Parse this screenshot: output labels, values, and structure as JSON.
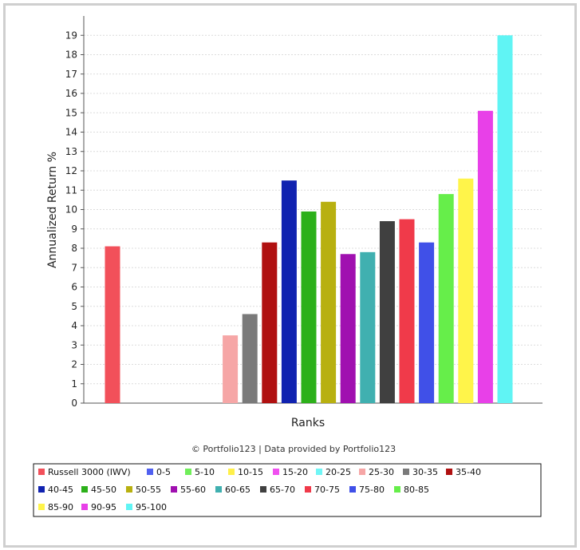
{
  "chart_data": {
    "type": "bar",
    "title": "",
    "xlabel": "Ranks",
    "ylabel": "Annualized Return %",
    "ylim": [
      0,
      20
    ],
    "yticks": [
      0,
      1,
      2,
      3,
      4,
      5,
      6,
      7,
      8,
      9,
      10,
      11,
      12,
      13,
      14,
      15,
      16,
      17,
      18,
      19
    ],
    "grid": true,
    "legend_position": "bottom",
    "credit": "© Portfolio123 | Data provided by Portfolio123",
    "series": [
      {
        "name": "Russell 3000 (IWV)",
        "value": 8.1,
        "color": "#f2505a"
      },
      {
        "name": "0-5",
        "value": null,
        "color": "#5060f0"
      },
      {
        "name": "5-10",
        "value": null,
        "color": "#70ee5a"
      },
      {
        "name": "10-15",
        "value": null,
        "color": "#fff04a"
      },
      {
        "name": "15-20",
        "value": null,
        "color": "#f050f0"
      },
      {
        "name": "20-25",
        "value": null,
        "color": "#70f6f6"
      },
      {
        "name": "25-30",
        "value": 3.5,
        "color": "#f6a6a6"
      },
      {
        "name": "30-35",
        "value": 4.6,
        "color": "#7a7a7a"
      },
      {
        "name": "35-40",
        "value": 8.3,
        "color": "#b01010"
      },
      {
        "name": "40-45",
        "value": 11.5,
        "color": "#1022b0"
      },
      {
        "name": "45-50",
        "value": 9.9,
        "color": "#2cb01a"
      },
      {
        "name": "50-55",
        "value": 10.4,
        "color": "#b8b010"
      },
      {
        "name": "55-60",
        "value": 7.7,
        "color": "#a010b0"
      },
      {
        "name": "60-65",
        "value": 7.8,
        "color": "#40b0b0"
      },
      {
        "name": "65-70",
        "value": 9.4,
        "color": "#404040"
      },
      {
        "name": "70-75",
        "value": 9.5,
        "color": "#f03a4a"
      },
      {
        "name": "75-80",
        "value": 8.3,
        "color": "#4050e8"
      },
      {
        "name": "80-85",
        "value": 10.8,
        "color": "#66ee4a"
      },
      {
        "name": "85-90",
        "value": 11.6,
        "color": "#fff44a"
      },
      {
        "name": "90-95",
        "value": 15.1,
        "color": "#e840e8"
      },
      {
        "name": "95-100",
        "value": 19.0,
        "color": "#60f4f4"
      }
    ]
  }
}
